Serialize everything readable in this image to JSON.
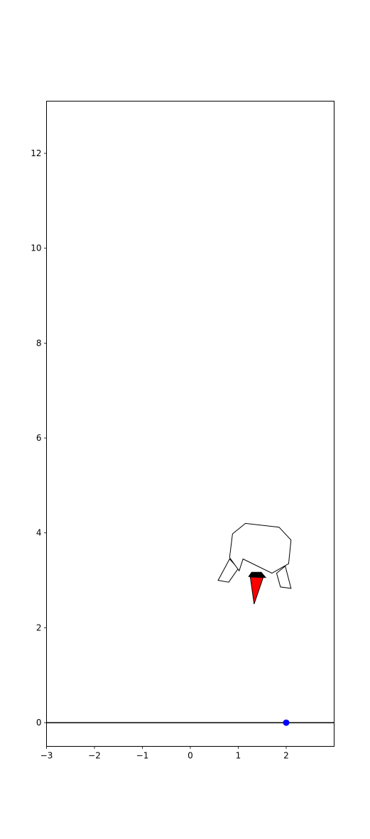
{
  "chart_data": {
    "type": "scatter",
    "title": "",
    "xlabel": "",
    "ylabel": "",
    "xlim": [
      -3,
      3
    ],
    "ylim": [
      -0.5,
      13.1
    ],
    "grid": false,
    "x_ticks": [
      -3,
      -2,
      -1,
      0,
      1,
      2
    ],
    "y_ticks": [
      0,
      2,
      4,
      6,
      8,
      10,
      12
    ],
    "x_tick_labels": [
      "−3",
      "−2",
      "−1",
      "0",
      "1",
      "2"
    ],
    "y_tick_labels": [
      "0",
      "2",
      "4",
      "6",
      "8",
      "10",
      "12"
    ],
    "ground_line": {
      "y": 0,
      "color": "#000000"
    },
    "target_point": {
      "x": 2.0,
      "y": 0.0,
      "color": "#0000ff"
    },
    "lander": {
      "body": [
        [
          1.1,
          3.45
        ],
        [
          1.7,
          3.15
        ],
        [
          2.05,
          3.35
        ],
        [
          2.1,
          3.85
        ],
        [
          1.85,
          4.12
        ],
        [
          1.15,
          4.2
        ],
        [
          0.88,
          3.98
        ],
        [
          0.82,
          3.48
        ],
        [
          1.02,
          3.2
        ]
      ],
      "left_leg": [
        [
          0.82,
          3.45
        ],
        [
          1.0,
          3.25
        ],
        [
          0.8,
          2.96
        ],
        [
          0.58,
          3.0
        ]
      ],
      "right_leg": [
        [
          1.98,
          3.3
        ],
        [
          2.1,
          2.83
        ],
        [
          1.88,
          2.86
        ],
        [
          1.8,
          3.15
        ]
      ],
      "nozzle": [
        [
          1.22,
          3.08
        ],
        [
          1.57,
          3.06
        ],
        [
          1.48,
          3.17
        ],
        [
          1.28,
          3.17
        ]
      ],
      "flame": [
        [
          1.25,
          3.07
        ],
        [
          1.52,
          3.06
        ],
        [
          1.33,
          2.5
        ]
      ],
      "body_color": "#ffffff",
      "nozzle_color": "#000000",
      "flame_color": "#ff0000"
    }
  }
}
